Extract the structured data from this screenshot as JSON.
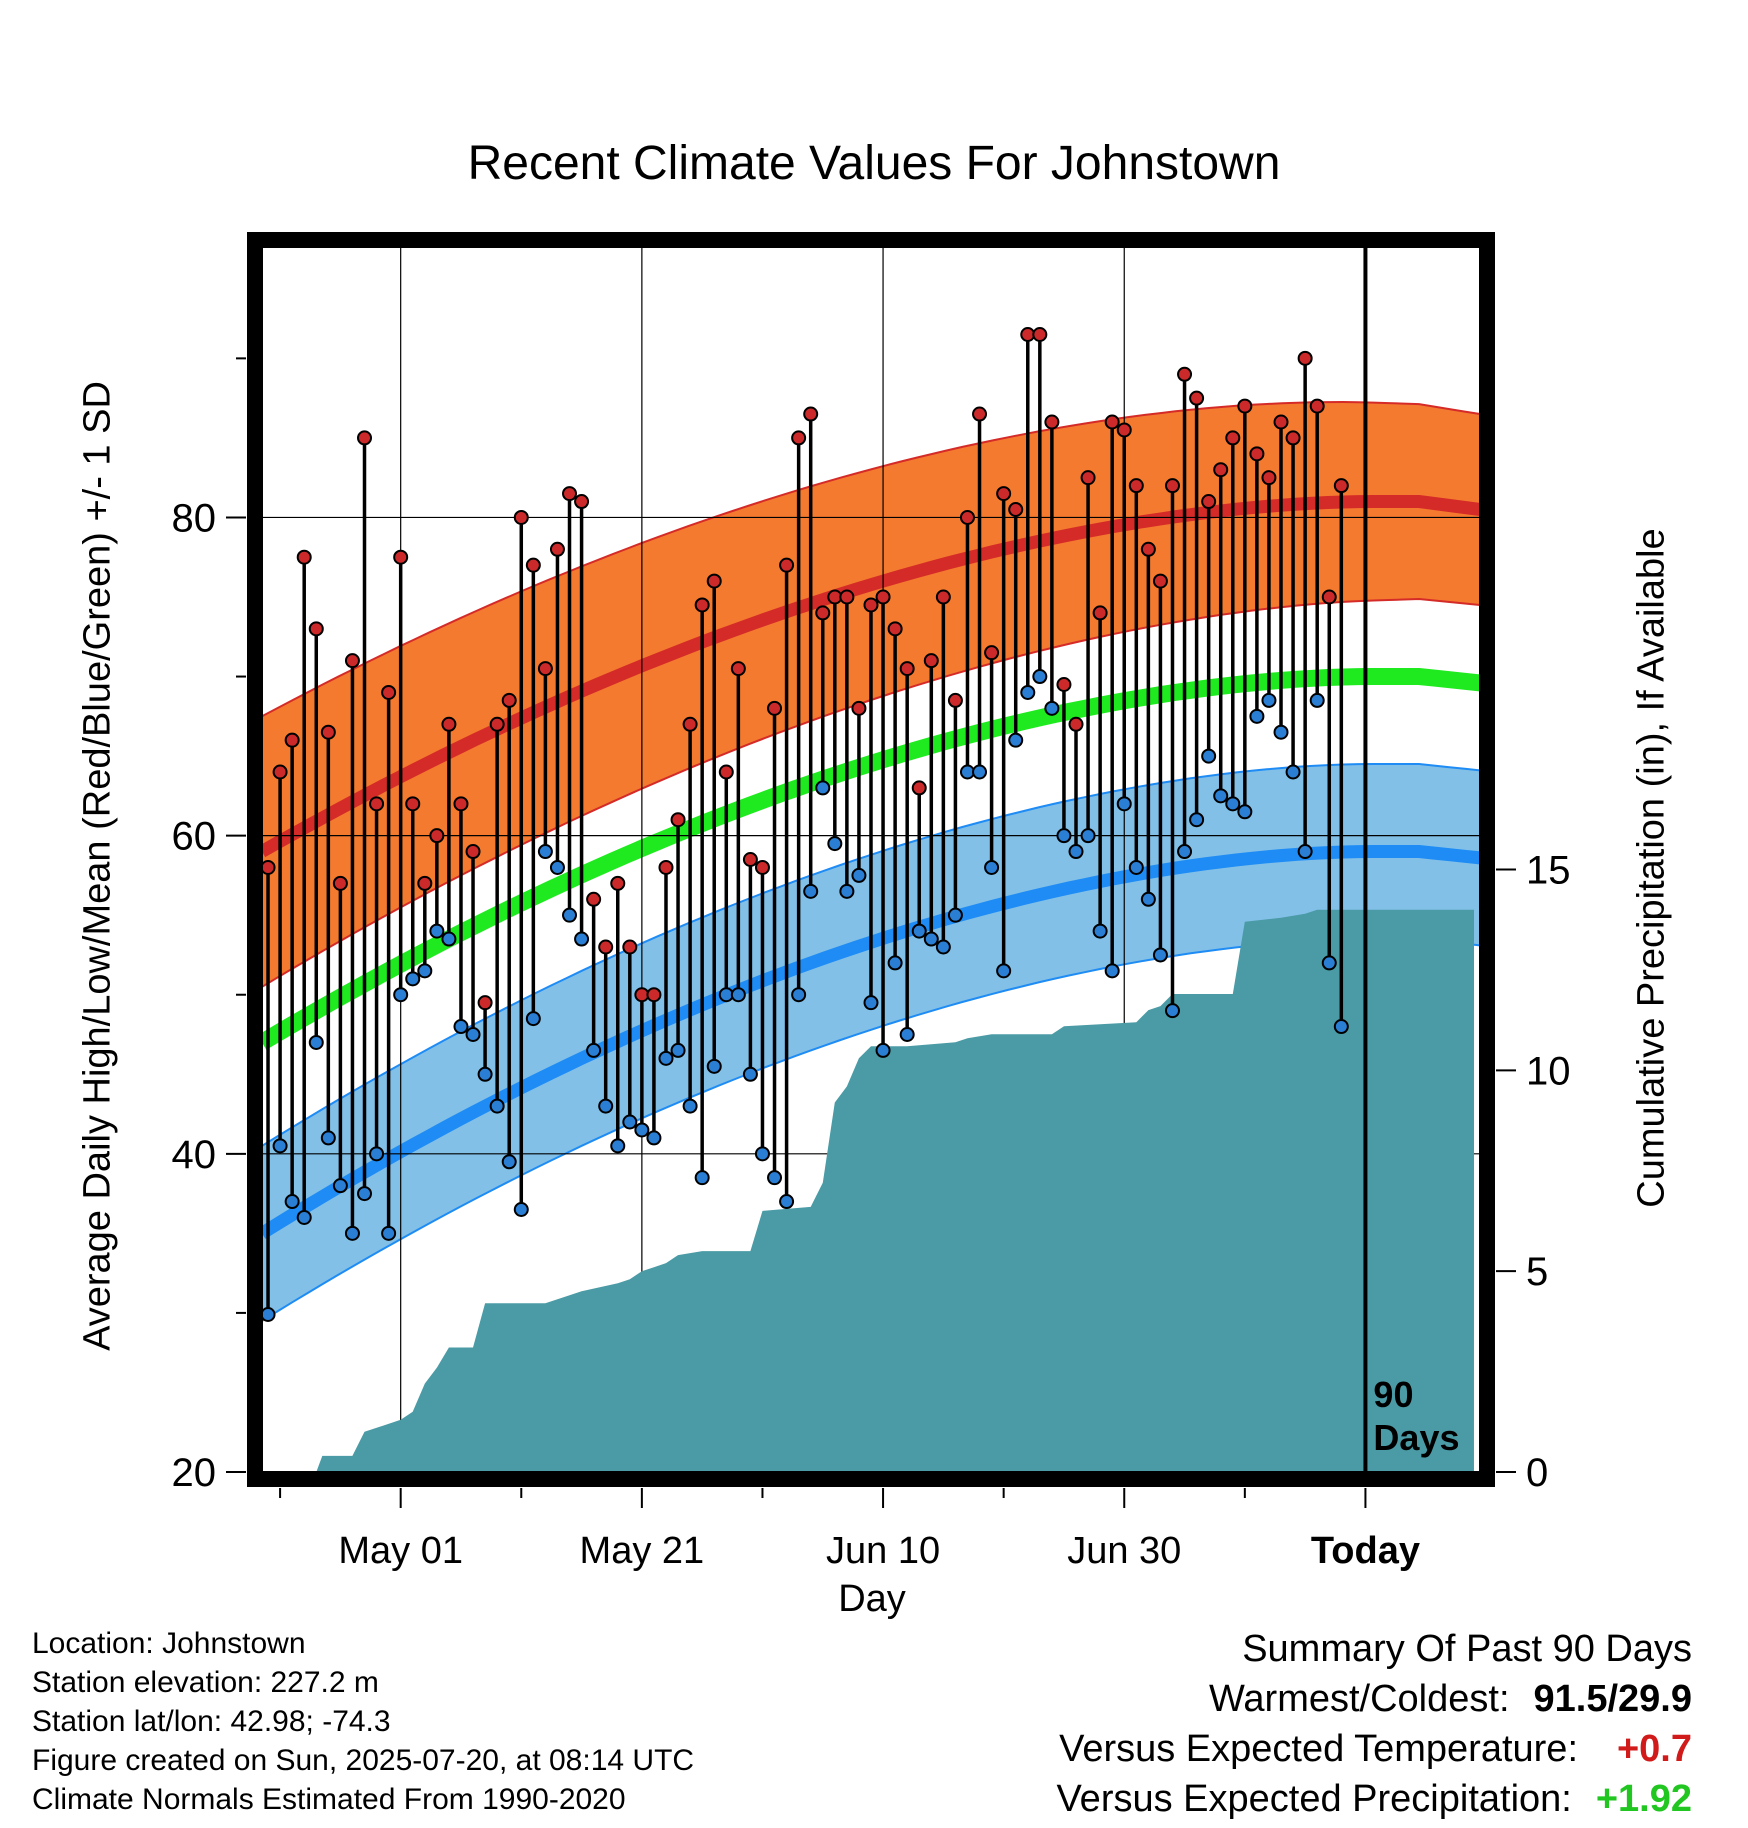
{
  "chart_data": {
    "type": "line",
    "title": "Recent Climate Values For Johnstown",
    "xlabel": "Day",
    "ylabel": "Average Daily High/Low/Mean (Red/Blue/Green) +/- 1 SD",
    "y2label": "Cumulative Precipitation (in), If Available",
    "ylim": [
      20,
      97
    ],
    "y2lim": [
      0,
      30.5
    ],
    "y_ticks": [
      20,
      40,
      60,
      80
    ],
    "y2_ticks": [
      0,
      5,
      10,
      15
    ],
    "x_ticks": [
      {
        "day": 12,
        "label": "May 01"
      },
      {
        "day": 32,
        "label": "May 21"
      },
      {
        "day": 52,
        "label": "Jun 10"
      },
      {
        "day": 72,
        "label": "Jun 30"
      },
      {
        "day": 92,
        "label": "Today"
      }
    ],
    "xlim": [
      0.5,
      101.5
    ],
    "today_marker": {
      "day": 92,
      "label_line1": "90",
      "label_line2": "Days"
    },
    "grid": true,
    "normals": {
      "high_mean_start": 59,
      "high_mean_end": 81,
      "low_mean_start": 35,
      "low_mean_end": 59,
      "mean_start": 47,
      "mean_end": 70,
      "high_sd": 8.5,
      "low_sd": 5.5
    },
    "series": [
      {
        "name": "High",
        "color": "#cc2a2a",
        "values": [
          58,
          64,
          66,
          77.5,
          73,
          66.5,
          57,
          71,
          85,
          62,
          69,
          77.5,
          62,
          57,
          60,
          67,
          62,
          59,
          49.5,
          67,
          68.5,
          80,
          77,
          70.5,
          78,
          81.5,
          81,
          56,
          53,
          57,
          53,
          50,
          50,
          58,
          61,
          67,
          74.5,
          76,
          64,
          70.5,
          58.5,
          58,
          68,
          77,
          85,
          86.5,
          74,
          75,
          75,
          68,
          74.5,
          75,
          73,
          70.5,
          63,
          71,
          75,
          68.5,
          80,
          86.5,
          71.5,
          81.5,
          80.5,
          91.5,
          91.5,
          86,
          69.5,
          67,
          82.5,
          74,
          86,
          85.5,
          82,
          78,
          76,
          82,
          89,
          87.5,
          81,
          83,
          85,
          87,
          84,
          82.5,
          86,
          85,
          90,
          87,
          75,
          82
        ]
      },
      {
        "name": "Low",
        "color": "#2a7fd4",
        "values": [
          29.9,
          40.5,
          37,
          36,
          47,
          41,
          38,
          35,
          37.5,
          40,
          35,
          50,
          51,
          51.5,
          54,
          53.5,
          48,
          47.5,
          45,
          43,
          39.5,
          36.5,
          48.5,
          59,
          58,
          55,
          53.5,
          46.5,
          43,
          40.5,
          42,
          41.5,
          41,
          46,
          46.5,
          43,
          38.5,
          45.5,
          50,
          50,
          45,
          40,
          38.5,
          37,
          50,
          56.5,
          63,
          59.5,
          56.5,
          57.5,
          49.5,
          46.5,
          52,
          47.5,
          54,
          53.5,
          53,
          55,
          64,
          64,
          58,
          51.5,
          66,
          69,
          70,
          68,
          60,
          59,
          60,
          54,
          51.5,
          62,
          58,
          56,
          52.5,
          49,
          59,
          61,
          65,
          62.5,
          62,
          61.5,
          67.5,
          68.5,
          66.5,
          64,
          59,
          68.5,
          52,
          48
        ]
      }
    ],
    "precip_cumulative": [
      {
        "day": 1,
        "value": 0
      },
      {
        "day": 5,
        "value": 0
      },
      {
        "day": 5.5,
        "value": 0.4
      },
      {
        "day": 8,
        "value": 0.4
      },
      {
        "day": 9,
        "value": 1
      },
      {
        "day": 12,
        "value": 1.3
      },
      {
        "day": 13,
        "value": 1.5
      },
      {
        "day": 14,
        "value": 2.2
      },
      {
        "day": 15,
        "value": 2.6
      },
      {
        "day": 16,
        "value": 3.1
      },
      {
        "day": 18,
        "value": 3.1
      },
      {
        "day": 19,
        "value": 4.2
      },
      {
        "day": 24,
        "value": 4.2
      },
      {
        "day": 27,
        "value": 4.5
      },
      {
        "day": 30,
        "value": 4.7
      },
      {
        "day": 31,
        "value": 4.8
      },
      {
        "day": 32,
        "value": 5
      },
      {
        "day": 33,
        "value": 5.1
      },
      {
        "day": 34,
        "value": 5.2
      },
      {
        "day": 35,
        "value": 5.4
      },
      {
        "day": 37,
        "value": 5.5
      },
      {
        "day": 41,
        "value": 5.5
      },
      {
        "day": 42,
        "value": 6.5
      },
      {
        "day": 46,
        "value": 6.6
      },
      {
        "day": 47,
        "value": 7.2
      },
      {
        "day": 48,
        "value": 9.2
      },
      {
        "day": 49,
        "value": 9.6
      },
      {
        "day": 50,
        "value": 10.3
      },
      {
        "day": 51,
        "value": 10.6
      },
      {
        "day": 54,
        "value": 10.6
      },
      {
        "day": 58,
        "value": 10.7
      },
      {
        "day": 59,
        "value": 10.8
      },
      {
        "day": 61,
        "value": 10.9
      },
      {
        "day": 66,
        "value": 10.9
      },
      {
        "day": 67,
        "value": 11.1
      },
      {
        "day": 73,
        "value": 11.2
      },
      {
        "day": 74,
        "value": 11.5
      },
      {
        "day": 75,
        "value": 11.6
      },
      {
        "day": 76,
        "value": 11.9
      },
      {
        "day": 81,
        "value": 11.9
      },
      {
        "day": 82,
        "value": 13.7
      },
      {
        "day": 85,
        "value": 13.8
      },
      {
        "day": 87,
        "value": 13.9
      },
      {
        "day": 88,
        "value": 14
      },
      {
        "day": 101,
        "value": 14
      }
    ],
    "colors": {
      "high_band": "#f47a2f",
      "high_line": "#d52b28",
      "low_band": "#82c0e8",
      "low_line": "#1e8cf4",
      "mean_line": "#1fea1f",
      "precip": "#4a9ba5",
      "warm_text": "#d11a1a",
      "precip_text": "#21c621"
    }
  },
  "info": {
    "location": "Location: Johnstown",
    "elevation": "Station elevation: 227.2 m",
    "latlon": "Station lat/lon: 42.98; -74.3",
    "created": "Figure created on Sun, 2025-07-20, at 08:14 UTC",
    "normals": "Climate Normals Estimated From 1990-2020"
  },
  "summary": {
    "heading": "Summary Of Past 90 Days",
    "warm_cold_label": "Warmest/Coldest:",
    "warm_cold_value": "91.5/29.9",
    "temp_label": "Versus Expected Temperature:",
    "temp_value": "+0.7",
    "precip_label": "Versus Expected Precipitation:",
    "precip_value": "+1.92"
  }
}
